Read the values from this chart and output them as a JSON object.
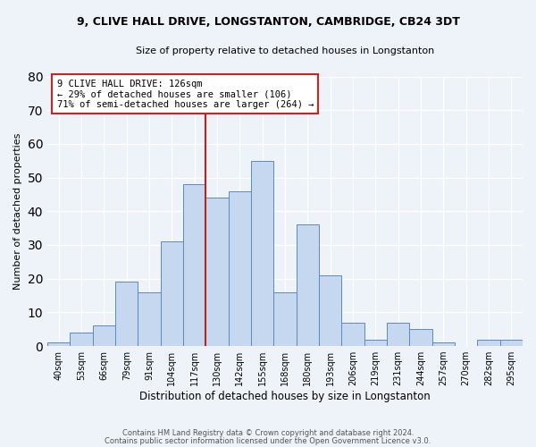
{
  "title_line1": "9, CLIVE HALL DRIVE, LONGSTANTON, CAMBRIDGE, CB24 3DT",
  "title_line2": "Size of property relative to detached houses in Longstanton",
  "xlabel": "Distribution of detached houses by size in Longstanton",
  "ylabel": "Number of detached properties",
  "bar_labels": [
    "40sqm",
    "53sqm",
    "66sqm",
    "79sqm",
    "91sqm",
    "104sqm",
    "117sqm",
    "130sqm",
    "142sqm",
    "155sqm",
    "168sqm",
    "180sqm",
    "193sqm",
    "206sqm",
    "219sqm",
    "231sqm",
    "244sqm",
    "257sqm",
    "270sqm",
    "282sqm",
    "295sqm"
  ],
  "bar_values": [
    1,
    4,
    6,
    19,
    16,
    31,
    48,
    44,
    46,
    55,
    16,
    36,
    21,
    7,
    2,
    7,
    5,
    1,
    0,
    2,
    2
  ],
  "bar_color": "#c5d8f0",
  "bar_edge_color": "#5a8abf",
  "vline_color": "#bb2222",
  "annotation_title": "9 CLIVE HALL DRIVE: 126sqm",
  "annotation_line1": "← 29% of detached houses are smaller (106)",
  "annotation_line2": "71% of semi-detached houses are larger (264) →",
  "annotation_box_color": "#ffffff",
  "annotation_box_edge": "#cc2222",
  "ylim": [
    0,
    80
  ],
  "yticks": [
    0,
    10,
    20,
    30,
    40,
    50,
    60,
    70,
    80
  ],
  "footer_line1": "Contains HM Land Registry data © Crown copyright and database right 2024.",
  "footer_line2": "Contains public sector information licensed under the Open Government Licence v3.0.",
  "background_color": "#eef2f9"
}
